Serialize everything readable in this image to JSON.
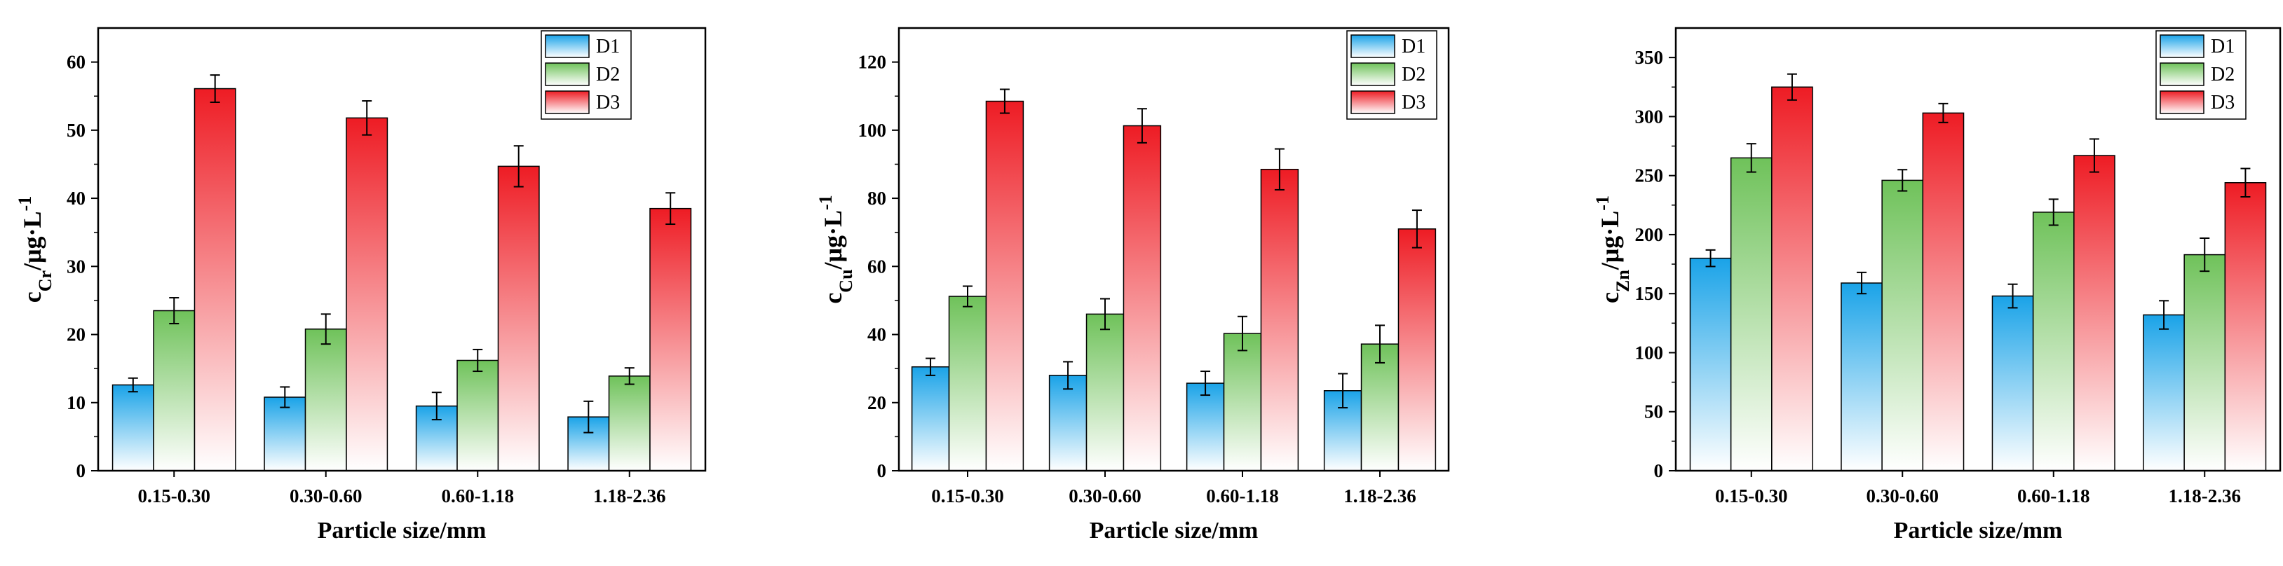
{
  "colors": {
    "D1": {
      "top": "#1aa3e8",
      "bottom": "#ffffff"
    },
    "D2": {
      "top": "#6fc25a",
      "bottom": "#ffffff"
    },
    "D3": {
      "top": "#ee1c24",
      "bottom": "#ffffff"
    },
    "axis": "#000000"
  },
  "chart_data": [
    {
      "type": "bar",
      "categories": [
        "0.15-0.30",
        "0.30-0.60",
        "0.60-1.18",
        "1.18-2.36"
      ],
      "xlabel": "Particle size/mm",
      "ylabel": {
        "base": "c",
        "sub": "Cr",
        "unit": "/μg·L",
        "sup": "-1"
      },
      "ylim": [
        0,
        65
      ],
      "yticks": [
        0,
        10,
        20,
        30,
        40,
        50,
        60
      ],
      "legend": "top-right",
      "grid": false,
      "series": [
        {
          "name": "D1",
          "values": [
            12.6,
            10.8,
            9.5,
            7.9
          ],
          "errors": [
            1.0,
            1.5,
            2.0,
            2.3
          ]
        },
        {
          "name": "D2",
          "values": [
            23.5,
            20.8,
            16.2,
            13.9
          ],
          "errors": [
            1.9,
            2.2,
            1.6,
            1.2
          ]
        },
        {
          "name": "D3",
          "values": [
            56.1,
            51.8,
            44.7,
            38.5
          ],
          "errors": [
            2.0,
            2.5,
            3.0,
            2.3
          ]
        }
      ]
    },
    {
      "type": "bar",
      "categories": [
        "0.15-0.30",
        "0.30-0.60",
        "0.60-1.18",
        "1.18-2.36"
      ],
      "xlabel": "Particle size/mm",
      "ylabel": {
        "base": "c",
        "sub": "Cu",
        "unit": "/μg·L",
        "sup": "-1"
      },
      "ylim": [
        0,
        130
      ],
      "yticks": [
        0,
        20,
        40,
        60,
        80,
        100,
        120
      ],
      "legend": "top-right",
      "grid": false,
      "series": [
        {
          "name": "D1",
          "values": [
            30.5,
            28.0,
            25.7,
            23.5
          ],
          "errors": [
            2.5,
            4.0,
            3.5,
            5.0
          ]
        },
        {
          "name": "D2",
          "values": [
            51.2,
            46.0,
            40.3,
            37.2
          ],
          "errors": [
            3.0,
            4.5,
            5.0,
            5.5
          ]
        },
        {
          "name": "D3",
          "values": [
            108.5,
            101.3,
            88.5,
            71.0
          ],
          "errors": [
            3.5,
            5.0,
            6.0,
            5.5
          ]
        }
      ]
    },
    {
      "type": "bar",
      "categories": [
        "0.15-0.30",
        "0.30-0.60",
        "0.60-1.18",
        "1.18-2.36"
      ],
      "xlabel": "Particle size/mm",
      "ylabel": {
        "base": "c",
        "sub": "Zn",
        "unit": "/μg·L",
        "sup": "-1"
      },
      "ylim": [
        0,
        375
      ],
      "yticks": [
        0,
        50,
        100,
        150,
        200,
        250,
        300,
        350
      ],
      "legend": "top-right",
      "grid": false,
      "series": [
        {
          "name": "D1",
          "values": [
            180,
            159,
            148,
            132
          ],
          "errors": [
            7,
            9,
            10,
            12
          ]
        },
        {
          "name": "D2",
          "values": [
            265,
            246,
            219,
            183
          ],
          "errors": [
            12,
            9,
            11,
            14
          ]
        },
        {
          "name": "D3",
          "values": [
            325,
            303,
            267,
            244
          ],
          "errors": [
            11,
            8,
            14,
            12
          ]
        }
      ]
    }
  ]
}
